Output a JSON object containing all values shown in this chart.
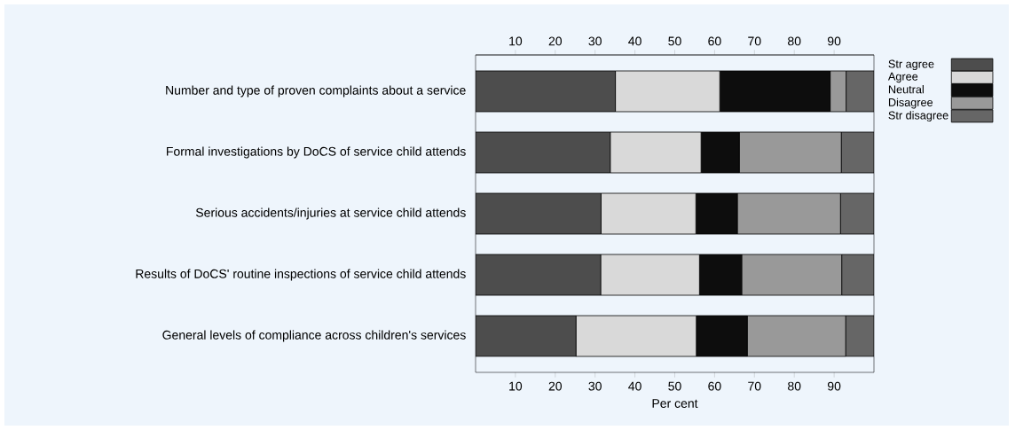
{
  "chart_data": {
    "type": "bar",
    "orientation": "horizontal",
    "stacked": true,
    "categories": [
      "Number and type of proven complaints about a service",
      "Formal investigations by DoCS of service child attends",
      "Serious accidents/injuries at service child attends",
      "Results of DoCS' routine inspections of service child attends",
      "General levels of compliance across children's services"
    ],
    "series": [
      {
        "name": "Str agree",
        "color": "#4d4d4d",
        "values": [
          35.1,
          33.8,
          31.5,
          31.4,
          25.2
        ]
      },
      {
        "name": "Agree",
        "color": "#d9d9d9",
        "values": [
          26.2,
          22.8,
          23.8,
          24.8,
          30.2
        ]
      },
      {
        "name": "Neutral",
        "color": "#0d0d0d",
        "values": [
          27.7,
          9.6,
          10.4,
          10.6,
          12.8
        ]
      },
      {
        "name": "Disagree",
        "color": "#999999",
        "values": [
          4.0,
          25.6,
          25.9,
          25.1,
          24.7
        ]
      },
      {
        "name": "Str disagree",
        "color": "#666666",
        "values": [
          7.0,
          8.2,
          8.4,
          8.1,
          7.1
        ]
      }
    ],
    "xlim": [
      0,
      100
    ],
    "xticks": [
      10,
      20,
      30,
      40,
      50,
      60,
      70,
      80,
      90
    ],
    "x2lim": [
      0,
      100
    ],
    "x2ticks": [
      10,
      20,
      30,
      40,
      50,
      60,
      70,
      80,
      90
    ],
    "xlabel": "Per cent",
    "legend": "top right"
  }
}
